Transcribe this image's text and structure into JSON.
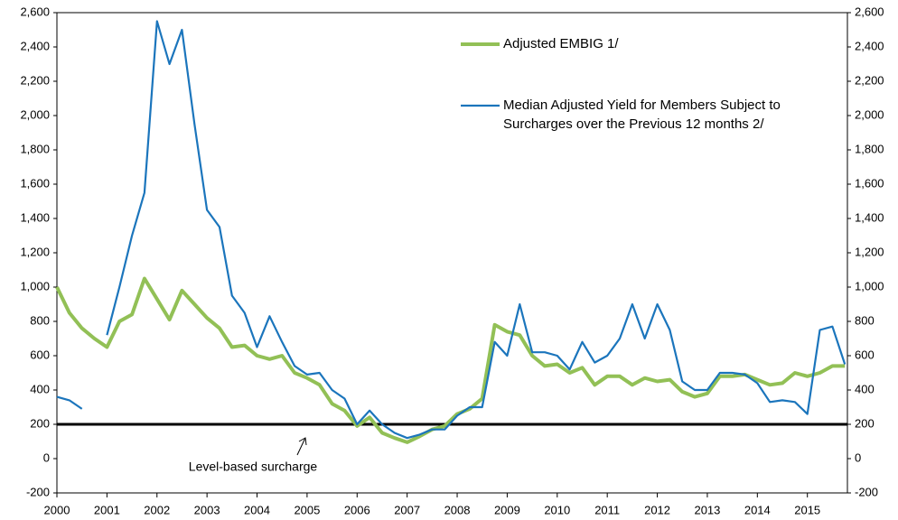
{
  "chart_data": {
    "type": "line",
    "x": [
      2000,
      2000.25,
      2000.5,
      2000.75,
      2001,
      2001.25,
      2001.5,
      2001.75,
      2002,
      2002.25,
      2002.5,
      2002.75,
      2003,
      2003.25,
      2003.5,
      2003.75,
      2004,
      2004.25,
      2004.5,
      2004.75,
      2005,
      2005.25,
      2005.5,
      2005.75,
      2006,
      2006.25,
      2006.5,
      2006.75,
      2007,
      2007.25,
      2007.5,
      2007.75,
      2008,
      2008.25,
      2008.5,
      2008.75,
      2009,
      2009.25,
      2009.5,
      2009.75,
      2010,
      2010.25,
      2010.5,
      2010.75,
      2011,
      2011.25,
      2011.5,
      2011.75,
      2012,
      2012.25,
      2012.5,
      2012.75,
      2013,
      2013.25,
      2013.5,
      2013.75,
      2014,
      2014.25,
      2014.5,
      2014.75,
      2015,
      2015.25,
      2015.5,
      2015.75
    ],
    "series": [
      {
        "name": "Adjusted EMBIG 1/",
        "color": "#92c056",
        "values": [
          1000,
          850,
          760,
          700,
          650,
          800,
          840,
          1050,
          930,
          810,
          980,
          900,
          820,
          760,
          650,
          660,
          600,
          580,
          600,
          500,
          470,
          430,
          320,
          280,
          190,
          240,
          150,
          120,
          95,
          130,
          170,
          190,
          260,
          290,
          350,
          780,
          740,
          720,
          600,
          540,
          550,
          500,
          530,
          430,
          480,
          480,
          430,
          470,
          450,
          460,
          390,
          360,
          380,
          480,
          480,
          490,
          460,
          430,
          440,
          500,
          480,
          500,
          540,
          540
        ]
      },
      {
        "name": "Median Adjusted Yield for Members Subject to Surcharges over the Previous 12 months 2/",
        "color": "#1b75bc",
        "values": [
          360,
          340,
          290,
          null,
          720,
          1000,
          1300,
          1550,
          2550,
          2300,
          2500,
          1950,
          1450,
          1350,
          950,
          850,
          650,
          830,
          680,
          540,
          490,
          500,
          400,
          350,
          200,
          280,
          200,
          150,
          120,
          140,
          170,
          170,
          250,
          300,
          300,
          680,
          600,
          900,
          620,
          620,
          600,
          520,
          680,
          560,
          600,
          700,
          900,
          700,
          900,
          750,
          450,
          400,
          400,
          500,
          500,
          490,
          440,
          330,
          340,
          330,
          260,
          750,
          770,
          550
        ]
      }
    ],
    "hline": 200,
    "annotations": [
      "Level-based surcharge"
    ],
    "xlim": [
      2000,
      2015.8
    ],
    "xticks": [
      2000,
      2001,
      2002,
      2003,
      2004,
      2005,
      2006,
      2007,
      2008,
      2009,
      2010,
      2011,
      2012,
      2013,
      2014,
      2015
    ],
    "ylim": [
      -200,
      2600
    ],
    "yticks": [
      -200,
      0,
      200,
      400,
      600,
      800,
      {
        "value": 1000,
        "label": "1,000"
      },
      {
        "value": 1200,
        "label": "1,200"
      },
      {
        "value": 1400,
        "label": "1,400"
      },
      {
        "value": 1600,
        "label": "1,600"
      },
      {
        "value": 1800,
        "label": "1,800"
      },
      {
        "value": 2000,
        "label": "2,000"
      },
      {
        "value": 2200,
        "label": "2,200"
      },
      {
        "value": 2400,
        "label": "2,400"
      },
      {
        "value": 2600,
        "label": "2,600"
      }
    ],
    "y2lim": [
      -200,
      2600
    ],
    "y2ticks": [
      -200,
      0,
      200,
      400,
      600,
      800,
      {
        "value": 1000,
        "label": "1,000"
      },
      {
        "value": 1200,
        "label": "1,200"
      },
      {
        "value": 1400,
        "label": "1,400"
      },
      {
        "value": 1600,
        "label": "1,600"
      },
      {
        "value": 1800,
        "label": "1,800"
      },
      {
        "value": 2000,
        "label": "2,000"
      },
      {
        "value": 2200,
        "label": "2,200"
      },
      {
        "value": 2400,
        "label": "2,400"
      },
      {
        "value": 2600,
        "label": "2,600"
      }
    ],
    "grid": false,
    "legend": "top-right"
  }
}
